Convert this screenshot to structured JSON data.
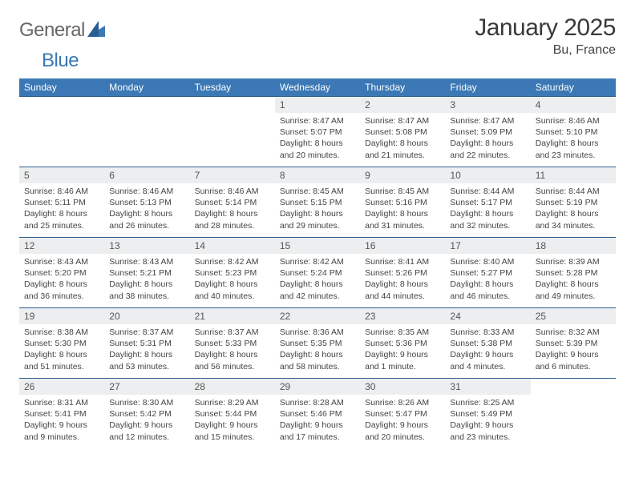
{
  "brand": {
    "general": "General",
    "blue": "Blue"
  },
  "title": "January 2025",
  "location": "Bu, France",
  "theme": {
    "header_bg": "#3b78b5",
    "header_fg": "#ffffff",
    "rule_color": "#2f5f8f",
    "daynum_bg": "#eceeef",
    "text_color": "#3a3a3a",
    "body_text_color": "#444444",
    "page_bg": "#ffffff",
    "font_family": "Arial, Helvetica, sans-serif",
    "title_fontsize_pt": 22,
    "subtitle_fontsize_pt": 12,
    "weekday_fontsize_pt": 9,
    "daynum_fontsize_pt": 9,
    "body_fontsize_pt": 8
  },
  "weekdays": [
    "Sunday",
    "Monday",
    "Tuesday",
    "Wednesday",
    "Thursday",
    "Friday",
    "Saturday"
  ],
  "weeks": [
    [
      {
        "n": "",
        "l1": "",
        "l2": "",
        "l3": "",
        "l4": "",
        "empty": true
      },
      {
        "n": "",
        "l1": "",
        "l2": "",
        "l3": "",
        "l4": "",
        "empty": true
      },
      {
        "n": "",
        "l1": "",
        "l2": "",
        "l3": "",
        "l4": "",
        "empty": true
      },
      {
        "n": "1",
        "l1": "Sunrise: 8:47 AM",
        "l2": "Sunset: 5:07 PM",
        "l3": "Daylight: 8 hours",
        "l4": "and 20 minutes."
      },
      {
        "n": "2",
        "l1": "Sunrise: 8:47 AM",
        "l2": "Sunset: 5:08 PM",
        "l3": "Daylight: 8 hours",
        "l4": "and 21 minutes."
      },
      {
        "n": "3",
        "l1": "Sunrise: 8:47 AM",
        "l2": "Sunset: 5:09 PM",
        "l3": "Daylight: 8 hours",
        "l4": "and 22 minutes."
      },
      {
        "n": "4",
        "l1": "Sunrise: 8:46 AM",
        "l2": "Sunset: 5:10 PM",
        "l3": "Daylight: 8 hours",
        "l4": "and 23 minutes."
      }
    ],
    [
      {
        "n": "5",
        "l1": "Sunrise: 8:46 AM",
        "l2": "Sunset: 5:11 PM",
        "l3": "Daylight: 8 hours",
        "l4": "and 25 minutes."
      },
      {
        "n": "6",
        "l1": "Sunrise: 8:46 AM",
        "l2": "Sunset: 5:13 PM",
        "l3": "Daylight: 8 hours",
        "l4": "and 26 minutes."
      },
      {
        "n": "7",
        "l1": "Sunrise: 8:46 AM",
        "l2": "Sunset: 5:14 PM",
        "l3": "Daylight: 8 hours",
        "l4": "and 28 minutes."
      },
      {
        "n": "8",
        "l1": "Sunrise: 8:45 AM",
        "l2": "Sunset: 5:15 PM",
        "l3": "Daylight: 8 hours",
        "l4": "and 29 minutes."
      },
      {
        "n": "9",
        "l1": "Sunrise: 8:45 AM",
        "l2": "Sunset: 5:16 PM",
        "l3": "Daylight: 8 hours",
        "l4": "and 31 minutes."
      },
      {
        "n": "10",
        "l1": "Sunrise: 8:44 AM",
        "l2": "Sunset: 5:17 PM",
        "l3": "Daylight: 8 hours",
        "l4": "and 32 minutes."
      },
      {
        "n": "11",
        "l1": "Sunrise: 8:44 AM",
        "l2": "Sunset: 5:19 PM",
        "l3": "Daylight: 8 hours",
        "l4": "and 34 minutes."
      }
    ],
    [
      {
        "n": "12",
        "l1": "Sunrise: 8:43 AM",
        "l2": "Sunset: 5:20 PM",
        "l3": "Daylight: 8 hours",
        "l4": "and 36 minutes."
      },
      {
        "n": "13",
        "l1": "Sunrise: 8:43 AM",
        "l2": "Sunset: 5:21 PM",
        "l3": "Daylight: 8 hours",
        "l4": "and 38 minutes."
      },
      {
        "n": "14",
        "l1": "Sunrise: 8:42 AM",
        "l2": "Sunset: 5:23 PM",
        "l3": "Daylight: 8 hours",
        "l4": "and 40 minutes."
      },
      {
        "n": "15",
        "l1": "Sunrise: 8:42 AM",
        "l2": "Sunset: 5:24 PM",
        "l3": "Daylight: 8 hours",
        "l4": "and 42 minutes."
      },
      {
        "n": "16",
        "l1": "Sunrise: 8:41 AM",
        "l2": "Sunset: 5:26 PM",
        "l3": "Daylight: 8 hours",
        "l4": "and 44 minutes."
      },
      {
        "n": "17",
        "l1": "Sunrise: 8:40 AM",
        "l2": "Sunset: 5:27 PM",
        "l3": "Daylight: 8 hours",
        "l4": "and 46 minutes."
      },
      {
        "n": "18",
        "l1": "Sunrise: 8:39 AM",
        "l2": "Sunset: 5:28 PM",
        "l3": "Daylight: 8 hours",
        "l4": "and 49 minutes."
      }
    ],
    [
      {
        "n": "19",
        "l1": "Sunrise: 8:38 AM",
        "l2": "Sunset: 5:30 PM",
        "l3": "Daylight: 8 hours",
        "l4": "and 51 minutes."
      },
      {
        "n": "20",
        "l1": "Sunrise: 8:37 AM",
        "l2": "Sunset: 5:31 PM",
        "l3": "Daylight: 8 hours",
        "l4": "and 53 minutes."
      },
      {
        "n": "21",
        "l1": "Sunrise: 8:37 AM",
        "l2": "Sunset: 5:33 PM",
        "l3": "Daylight: 8 hours",
        "l4": "and 56 minutes."
      },
      {
        "n": "22",
        "l1": "Sunrise: 8:36 AM",
        "l2": "Sunset: 5:35 PM",
        "l3": "Daylight: 8 hours",
        "l4": "and 58 minutes."
      },
      {
        "n": "23",
        "l1": "Sunrise: 8:35 AM",
        "l2": "Sunset: 5:36 PM",
        "l3": "Daylight: 9 hours",
        "l4": "and 1 minute."
      },
      {
        "n": "24",
        "l1": "Sunrise: 8:33 AM",
        "l2": "Sunset: 5:38 PM",
        "l3": "Daylight: 9 hours",
        "l4": "and 4 minutes."
      },
      {
        "n": "25",
        "l1": "Sunrise: 8:32 AM",
        "l2": "Sunset: 5:39 PM",
        "l3": "Daylight: 9 hours",
        "l4": "and 6 minutes."
      }
    ],
    [
      {
        "n": "26",
        "l1": "Sunrise: 8:31 AM",
        "l2": "Sunset: 5:41 PM",
        "l3": "Daylight: 9 hours",
        "l4": "and 9 minutes."
      },
      {
        "n": "27",
        "l1": "Sunrise: 8:30 AM",
        "l2": "Sunset: 5:42 PM",
        "l3": "Daylight: 9 hours",
        "l4": "and 12 minutes."
      },
      {
        "n": "28",
        "l1": "Sunrise: 8:29 AM",
        "l2": "Sunset: 5:44 PM",
        "l3": "Daylight: 9 hours",
        "l4": "and 15 minutes."
      },
      {
        "n": "29",
        "l1": "Sunrise: 8:28 AM",
        "l2": "Sunset: 5:46 PM",
        "l3": "Daylight: 9 hours",
        "l4": "and 17 minutes."
      },
      {
        "n": "30",
        "l1": "Sunrise: 8:26 AM",
        "l2": "Sunset: 5:47 PM",
        "l3": "Daylight: 9 hours",
        "l4": "and 20 minutes."
      },
      {
        "n": "31",
        "l1": "Sunrise: 8:25 AM",
        "l2": "Sunset: 5:49 PM",
        "l3": "Daylight: 9 hours",
        "l4": "and 23 minutes."
      },
      {
        "n": "",
        "l1": "",
        "l2": "",
        "l3": "",
        "l4": "",
        "empty": true
      }
    ]
  ]
}
